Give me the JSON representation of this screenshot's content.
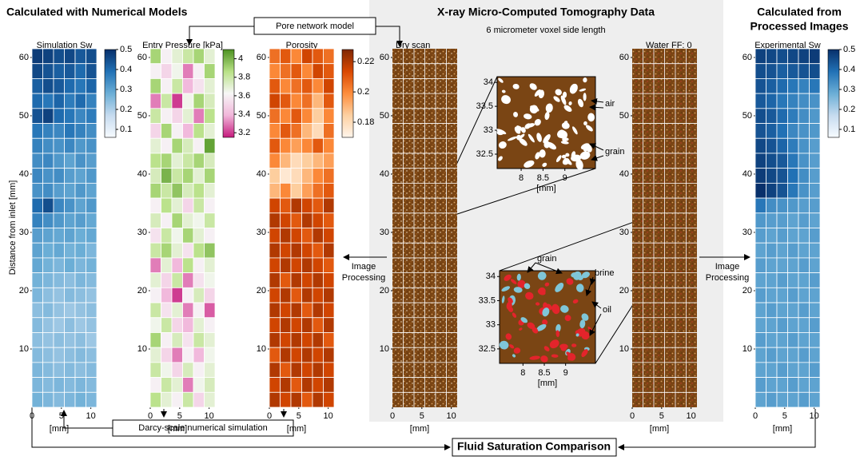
{
  "headings": {
    "numerical": "Calculated with Numerical Models",
    "xray": "X-ray Micro-Computed Tomography Data",
    "xray_sub": "6 micrometer voxel side length",
    "processed": [
      "Calculated from",
      "Processed Images"
    ]
  },
  "y_axis_label": "Distance from inlet [mm]",
  "boxes": {
    "pore_network": "Pore network model",
    "darcy": "Darcy-scale numerical simulation",
    "comparison": "Fluid Saturation Comparison"
  },
  "image_processing_left": [
    "Image",
    "Processing"
  ],
  "image_processing_right": [
    "Image",
    "Processing"
  ],
  "panels": [
    {
      "title": "Simulation Sw",
      "xlabel": "[mm]",
      "xlim": [
        0,
        11
      ],
      "xticks": [
        0,
        5,
        10
      ],
      "ylim": [
        0,
        61.5
      ],
      "yticks": [
        10,
        20,
        30,
        40,
        50,
        60
      ],
      "cmap": "blues",
      "clim": [
        0.06,
        0.5
      ],
      "cticks": [
        0.1,
        0.2,
        0.3,
        0.4,
        0.5
      ],
      "values": [
        [
          0.48,
          0.47,
          0.45,
          0.46,
          0.43,
          0.45
        ],
        [
          0.46,
          0.44,
          0.42,
          0.43,
          0.4,
          0.44
        ],
        [
          0.42,
          0.45,
          0.43,
          0.4,
          0.38,
          0.41
        ],
        [
          0.4,
          0.38,
          0.41,
          0.37,
          0.4,
          0.36
        ],
        [
          0.44,
          0.47,
          0.4,
          0.38,
          0.35,
          0.37
        ],
        [
          0.38,
          0.36,
          0.35,
          0.38,
          0.36,
          0.34
        ],
        [
          0.36,
          0.34,
          0.33,
          0.35,
          0.32,
          0.33
        ],
        [
          0.34,
          0.35,
          0.32,
          0.3,
          0.33,
          0.31
        ],
        [
          0.35,
          0.33,
          0.34,
          0.31,
          0.3,
          0.32
        ],
        [
          0.33,
          0.34,
          0.31,
          0.3,
          0.32,
          0.3
        ],
        [
          0.4,
          0.45,
          0.35,
          0.33,
          0.3,
          0.32
        ],
        [
          0.36,
          0.34,
          0.32,
          0.3,
          0.31,
          0.29
        ],
        [
          0.31,
          0.3,
          0.29,
          0.3,
          0.28,
          0.29
        ],
        [
          0.3,
          0.28,
          0.29,
          0.27,
          0.28,
          0.26
        ],
        [
          0.29,
          0.27,
          0.26,
          0.28,
          0.26,
          0.27
        ],
        [
          0.27,
          0.26,
          0.25,
          0.24,
          0.26,
          0.25
        ],
        [
          0.26,
          0.24,
          0.23,
          0.25,
          0.24,
          0.23
        ],
        [
          0.24,
          0.25,
          0.23,
          0.22,
          0.23,
          0.24
        ],
        [
          0.25,
          0.23,
          0.22,
          0.24,
          0.22,
          0.23
        ],
        [
          0.24,
          0.23,
          0.24,
          0.23,
          0.24,
          0.22
        ],
        [
          0.25,
          0.24,
          0.23,
          0.24,
          0.25,
          0.24
        ],
        [
          0.26,
          0.25,
          0.24,
          0.25,
          0.24,
          0.25
        ],
        [
          0.26,
          0.25,
          0.26,
          0.25,
          0.26,
          0.25
        ],
        [
          0.27,
          0.26,
          0.25,
          0.26,
          0.27,
          0.26
        ]
      ]
    },
    {
      "title": "Entry Pressure [kPa]",
      "xlabel": "[mm]",
      "xlim": [
        0,
        11
      ],
      "xticks": [
        0,
        5,
        10
      ],
      "ylim": [
        0,
        61.5
      ],
      "yticks": [
        10,
        20,
        30,
        40,
        50,
        60
      ],
      "cmap": "piyg",
      "clim": [
        3.15,
        4.1
      ],
      "cticks": [
        3.2,
        3.4,
        3.6,
        3.8,
        4
      ],
      "values": [
        [
          3.9,
          3.6,
          3.7,
          3.8,
          3.9,
          3.7
        ],
        [
          3.6,
          3.5,
          3.65,
          3.3,
          3.6,
          3.9
        ],
        [
          3.9,
          3.6,
          3.8,
          3.4,
          3.55,
          3.7
        ],
        [
          3.3,
          3.8,
          3.2,
          3.65,
          3.9,
          3.75
        ],
        [
          3.8,
          3.6,
          3.5,
          3.7,
          3.3,
          3.85
        ],
        [
          3.5,
          3.9,
          3.6,
          3.4,
          3.85,
          3.7
        ],
        [
          3.7,
          3.6,
          3.9,
          3.75,
          3.6,
          4.05
        ],
        [
          3.85,
          3.9,
          3.7,
          3.8,
          3.9,
          3.75
        ],
        [
          3.75,
          4,
          3.8,
          3.9,
          3.7,
          3.9
        ],
        [
          3.9,
          3.8,
          3.95,
          3.75,
          3.85,
          3.7
        ],
        [
          3.6,
          3.85,
          3.7,
          3.5,
          3.8,
          3.6
        ],
        [
          3.75,
          3.6,
          3.9,
          3.7,
          3.65,
          3.8
        ],
        [
          3.55,
          3.8,
          3.65,
          3.9,
          3.7,
          3.6
        ],
        [
          3.8,
          3.9,
          3.7,
          3.55,
          3.85,
          3.95
        ],
        [
          3.3,
          3.7,
          3.4,
          3.85,
          3.6,
          3.7
        ],
        [
          3.7,
          3.5,
          3.8,
          3.3,
          3.55,
          3.65
        ],
        [
          3.6,
          3.4,
          3.2,
          3.6,
          3.75,
          3.5
        ],
        [
          3.8,
          3.55,
          3.7,
          3.3,
          3.6,
          3.25
        ],
        [
          3.65,
          3.8,
          3.5,
          3.4,
          3.7,
          3.6
        ],
        [
          3.9,
          3.6,
          3.75,
          3.55,
          3.8,
          3.7
        ],
        [
          3.7,
          3.5,
          3.3,
          3.6,
          3.4,
          3.65
        ],
        [
          3.8,
          3.65,
          3.5,
          3.75,
          3.6,
          3.7
        ],
        [
          3.6,
          3.8,
          3.7,
          3.3,
          3.65,
          3.75
        ],
        [
          3.85,
          3.7,
          3.6,
          3.8,
          3.5,
          3.7
        ]
      ]
    },
    {
      "title": "Porosity",
      "xlabel": "[mm]",
      "xlim": [
        0,
        11
      ],
      "xticks": [
        0,
        5,
        10
      ],
      "ylim": [
        0,
        61.5
      ],
      "yticks": [
        10,
        20,
        30,
        40,
        50,
        60
      ],
      "cmap": "oranges",
      "clim": [
        0.17,
        0.228
      ],
      "cticks": [
        0.18,
        0.2,
        0.22
      ],
      "values": [
        [
          0.205,
          0.21,
          0.2,
          0.215,
          0.21,
          0.205
        ],
        [
          0.2,
          0.205,
          0.21,
          0.2,
          0.215,
          0.21
        ],
        [
          0.21,
          0.2,
          0.205,
          0.21,
          0.2,
          0.215
        ],
        [
          0.215,
          0.21,
          0.2,
          0.205,
          0.19,
          0.21
        ],
        [
          0.205,
          0.2,
          0.21,
          0.2,
          0.185,
          0.2
        ],
        [
          0.2,
          0.21,
          0.205,
          0.19,
          0.18,
          0.205
        ],
        [
          0.21,
          0.2,
          0.195,
          0.2,
          0.21,
          0.2
        ],
        [
          0.2,
          0.19,
          0.18,
          0.185,
          0.19,
          0.195
        ],
        [
          0.185,
          0.175,
          0.18,
          0.19,
          0.2,
          0.205
        ],
        [
          0.19,
          0.2,
          0.185,
          0.195,
          0.205,
          0.21
        ],
        [
          0.215,
          0.21,
          0.22,
          0.215,
          0.21,
          0.22
        ],
        [
          0.22,
          0.215,
          0.21,
          0.22,
          0.215,
          0.21
        ],
        [
          0.215,
          0.22,
          0.215,
          0.21,
          0.22,
          0.215
        ],
        [
          0.22,
          0.215,
          0.22,
          0.215,
          0.21,
          0.22
        ],
        [
          0.215,
          0.22,
          0.215,
          0.22,
          0.215,
          0.21
        ],
        [
          0.22,
          0.21,
          0.22,
          0.215,
          0.22,
          0.215
        ],
        [
          0.215,
          0.22,
          0.21,
          0.22,
          0.215,
          0.22
        ],
        [
          0.22,
          0.215,
          0.22,
          0.21,
          0.22,
          0.215
        ],
        [
          0.215,
          0.22,
          0.215,
          0.22,
          0.21,
          0.22
        ],
        [
          0.22,
          0.215,
          0.22,
          0.215,
          0.22,
          0.21
        ],
        [
          0.21,
          0.22,
          0.215,
          0.22,
          0.215,
          0.22
        ],
        [
          0.22,
          0.21,
          0.22,
          0.215,
          0.22,
          0.215
        ],
        [
          0.215,
          0.22,
          0.21,
          0.22,
          0.215,
          0.22
        ],
        [
          0.22,
          0.215,
          0.22,
          0.21,
          0.22,
          0.215
        ]
      ]
    },
    {
      "title": "Experimental Sw",
      "xlabel": "[mm]",
      "xlim": [
        0,
        11
      ],
      "xticks": [
        0,
        5,
        10
      ],
      "ylim": [
        0,
        61.5
      ],
      "yticks": [
        10,
        20,
        30,
        40,
        50,
        60
      ],
      "cmap": "blues",
      "clim": [
        0.06,
        0.5
      ],
      "cticks": [
        0.1,
        0.2,
        0.3,
        0.4,
        0.5
      ],
      "values": [
        [
          0.47,
          0.46,
          0.45,
          0.46,
          0.47,
          0.48
        ],
        [
          0.45,
          0.44,
          0.42,
          0.43,
          0.44,
          0.45
        ],
        [
          0.44,
          0.42,
          0.4,
          0.38,
          0.36,
          0.38
        ],
        [
          0.43,
          0.41,
          0.38,
          0.36,
          0.34,
          0.33
        ],
        [
          0.45,
          0.43,
          0.4,
          0.37,
          0.34,
          0.32
        ],
        [
          0.44,
          0.42,
          0.39,
          0.35,
          0.33,
          0.32
        ],
        [
          0.46,
          0.44,
          0.41,
          0.37,
          0.33,
          0.31
        ],
        [
          0.47,
          0.45,
          0.43,
          0.38,
          0.33,
          0.31
        ],
        [
          0.48,
          0.46,
          0.44,
          0.39,
          0.34,
          0.31
        ],
        [
          0.5,
          0.47,
          0.44,
          0.38,
          0.33,
          0.31
        ],
        [
          0.38,
          0.34,
          0.33,
          0.32,
          0.31,
          0.31
        ],
        [
          0.32,
          0.31,
          0.31,
          0.3,
          0.31,
          0.3
        ],
        [
          0.31,
          0.3,
          0.31,
          0.3,
          0.3,
          0.31
        ],
        [
          0.3,
          0.31,
          0.3,
          0.31,
          0.3,
          0.3
        ],
        [
          0.31,
          0.3,
          0.3,
          0.3,
          0.31,
          0.3
        ],
        [
          0.3,
          0.3,
          0.31,
          0.3,
          0.3,
          0.31
        ],
        [
          0.31,
          0.3,
          0.3,
          0.31,
          0.3,
          0.3
        ],
        [
          0.3,
          0.31,
          0.3,
          0.3,
          0.31,
          0.3
        ],
        [
          0.3,
          0.3,
          0.31,
          0.3,
          0.3,
          0.31
        ],
        [
          0.31,
          0.3,
          0.3,
          0.31,
          0.3,
          0.3
        ],
        [
          0.3,
          0.31,
          0.3,
          0.3,
          0.31,
          0.3
        ],
        [
          0.3,
          0.3,
          0.31,
          0.3,
          0.3,
          0.31
        ],
        [
          0.31,
          0.3,
          0.3,
          0.31,
          0.3,
          0.3
        ],
        [
          0.3,
          0.31,
          0.3,
          0.3,
          0.31,
          0.3
        ]
      ]
    }
  ],
  "scans": [
    {
      "title": "Dry scan",
      "xlabel": "[mm]",
      "xlim": [
        0,
        11
      ],
      "xticks": [
        0,
        5,
        10
      ],
      "ylim": [
        0,
        61.5
      ],
      "yticks": [
        10,
        20,
        30,
        40,
        50,
        60
      ]
    },
    {
      "title": "Water FF: 0",
      "xlabel": "[mm]",
      "xlim": [
        0,
        11
      ],
      "xticks": [
        0,
        5,
        10
      ],
      "ylim": [
        0,
        61.5
      ],
      "yticks": [
        10,
        20,
        30,
        40,
        50,
        60
      ]
    }
  ],
  "insets": [
    {
      "xlim": [
        7.45,
        9.7
      ],
      "ylim": [
        32.2,
        34.12
      ],
      "xticks": [
        8,
        8.5,
        9
      ],
      "yticks": [
        34,
        33.5,
        33,
        32.5
      ],
      "xlabel": "[mm]",
      "labels": [
        "air",
        "grain"
      ]
    },
    {
      "xlim": [
        7.45,
        9.7
      ],
      "ylim": [
        32.2,
        34.12
      ],
      "xticks": [
        8,
        8.5,
        9
      ],
      "yticks": [
        34,
        33.5,
        33,
        32.5
      ],
      "xlabel": "[mm]",
      "labels": [
        "grain",
        "brine",
        "oil"
      ]
    }
  ]
}
